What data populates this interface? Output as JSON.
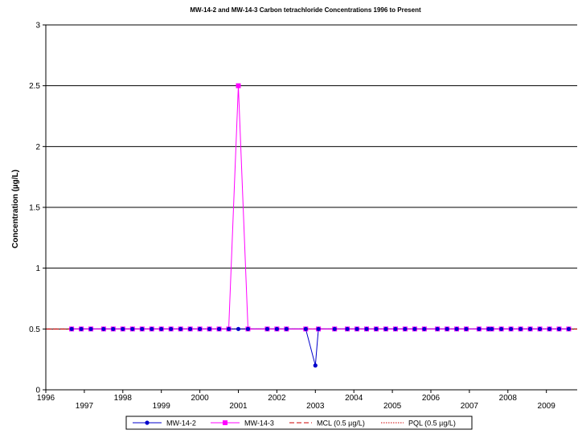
{
  "chart_data": {
    "type": "line",
    "title": "MW-14-2 and MW-14-3 Carbon tetrachloride Concentrations 1996 to Present",
    "xlabel": "",
    "ylabel": "Concentration (µg/L)",
    "xlim": [
      1996,
      2009.8
    ],
    "ylim": [
      0,
      3
    ],
    "yticks": [
      "0",
      "0.5",
      "1",
      "1.5",
      "2",
      "2.5",
      "3"
    ],
    "xticks_top": [
      "1996",
      "1998",
      "2000",
      "2002",
      "2004",
      "2006",
      "2008"
    ],
    "xticks_bottom": [
      "1997",
      "1999",
      "2001",
      "2003",
      "2005",
      "2007",
      "2009"
    ],
    "grid": "horizontal",
    "legend_position": "bottom",
    "series": [
      {
        "name": "MW-14-2",
        "color": "#0000cc",
        "marker": "circle",
        "x": [
          1996.67,
          1996.92,
          1997.17,
          1997.5,
          1997.75,
          1998.0,
          1998.25,
          1998.5,
          1998.75,
          1999.0,
          1999.25,
          1999.5,
          1999.75,
          2000.0,
          2000.25,
          2000.5,
          2000.75,
          2001.0,
          2001.25,
          2001.75,
          2002.0,
          2002.25,
          2002.75,
          2003.0,
          2003.08,
          2003.5,
          2003.83,
          2004.08,
          2004.33,
          2004.58,
          2004.83,
          2005.08,
          2005.33,
          2005.58,
          2005.83,
          2006.17,
          2006.42,
          2006.67,
          2006.92,
          2007.25,
          2007.5,
          2007.58,
          2007.83,
          2008.08,
          2008.33,
          2008.58,
          2008.83,
          2009.08,
          2009.33,
          2009.58
        ],
        "values": [
          0.5,
          0.5,
          0.5,
          0.5,
          0.5,
          0.5,
          0.5,
          0.5,
          0.5,
          0.5,
          0.5,
          0.5,
          0.5,
          0.5,
          0.5,
          0.5,
          0.5,
          0.5,
          0.5,
          0.5,
          0.5,
          0.5,
          0.5,
          0.2,
          0.5,
          0.5,
          0.5,
          0.5,
          0.5,
          0.5,
          0.5,
          0.5,
          0.5,
          0.5,
          0.5,
          0.5,
          0.5,
          0.5,
          0.5,
          0.5,
          0.5,
          0.5,
          0.5,
          0.5,
          0.5,
          0.5,
          0.5,
          0.5,
          0.5,
          0.5
        ]
      },
      {
        "name": "MW-14-3",
        "color": "#ff00ff",
        "marker": "square",
        "x": [
          1996.67,
          1996.92,
          1997.17,
          1997.5,
          1997.75,
          1998.0,
          1998.25,
          1998.5,
          1998.75,
          1999.0,
          1999.25,
          1999.5,
          1999.75,
          2000.0,
          2000.25,
          2000.5,
          2000.75,
          2001.0,
          2001.25,
          2001.75,
          2002.0,
          2002.25,
          2002.75,
          2003.08,
          2003.5,
          2003.83,
          2004.08,
          2004.33,
          2004.58,
          2004.83,
          2005.08,
          2005.33,
          2005.58,
          2005.83,
          2006.17,
          2006.42,
          2006.67,
          2006.92,
          2007.25,
          2007.5,
          2007.58,
          2007.83,
          2008.08,
          2008.33,
          2008.58,
          2008.83,
          2009.08,
          2009.33,
          2009.58
        ],
        "values": [
          0.5,
          0.5,
          0.5,
          0.5,
          0.5,
          0.5,
          0.5,
          0.5,
          0.5,
          0.5,
          0.5,
          0.5,
          0.5,
          0.5,
          0.5,
          0.5,
          0.5,
          2.5,
          0.5,
          0.5,
          0.5,
          0.5,
          0.5,
          0.5,
          0.5,
          0.5,
          0.5,
          0.5,
          0.5,
          0.5,
          0.5,
          0.5,
          0.5,
          0.5,
          0.5,
          0.5,
          0.5,
          0.5,
          0.5,
          0.5,
          0.5,
          0.5,
          0.5,
          0.5,
          0.5,
          0.5,
          0.5,
          0.5,
          0.5
        ]
      }
    ],
    "reference_lines": [
      {
        "name": "MCL (0.5 µg/L)",
        "value": 0.5,
        "color": "#cc0000",
        "dash": "dashed"
      },
      {
        "name": "PQL (0.5 µg/L)",
        "value": 0.5,
        "color": "#cc0000",
        "dash": "dotted"
      }
    ]
  }
}
